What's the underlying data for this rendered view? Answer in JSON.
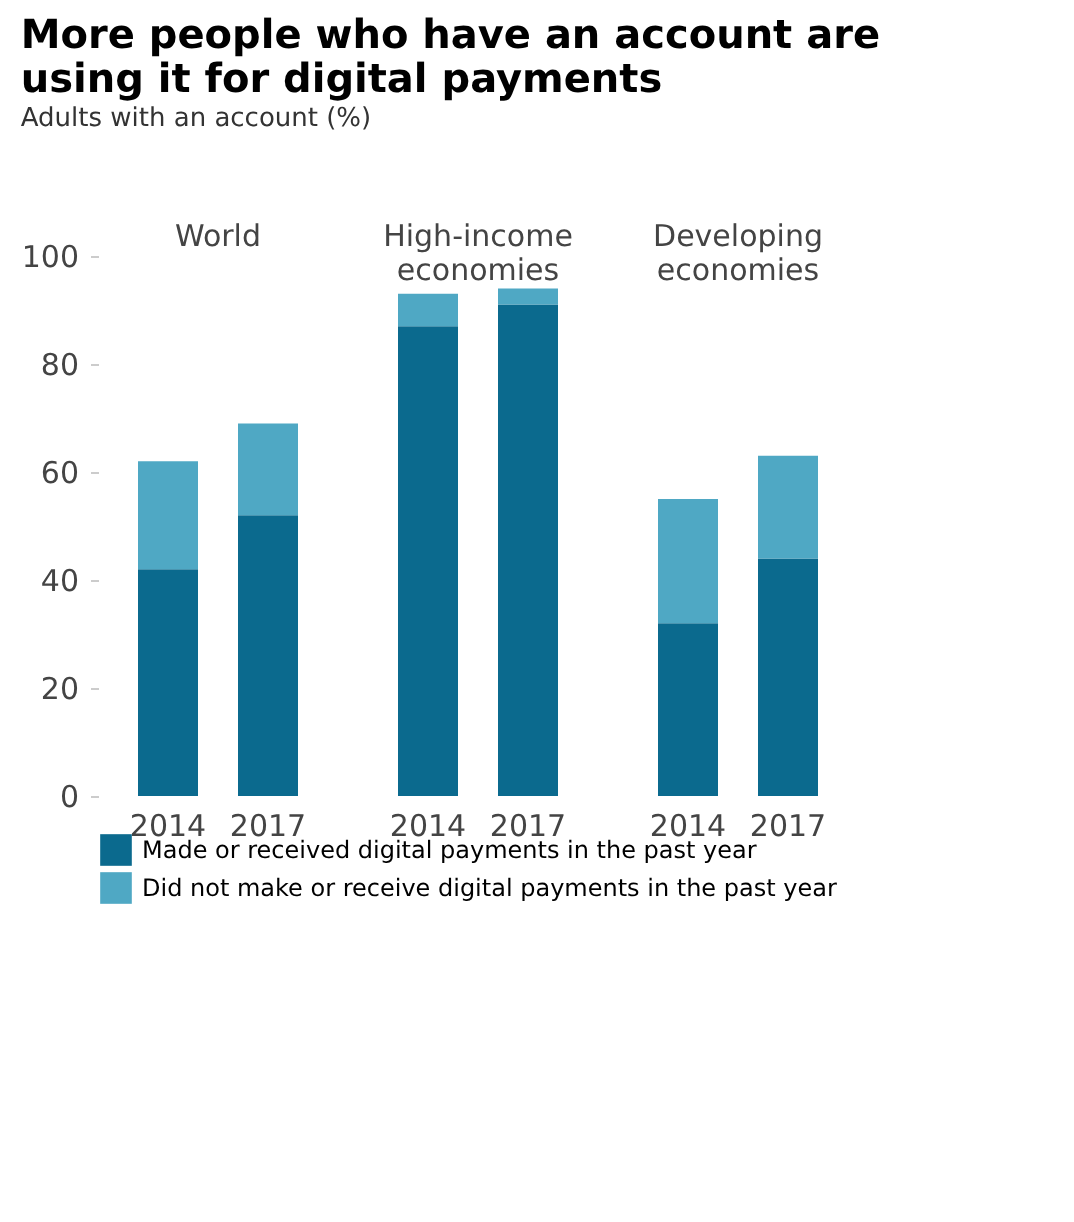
{
  "chart_data": {
    "type": "bar",
    "title": "More people who have an account are using it for digital payments",
    "subtitle": "Adults with an account (%)",
    "categories": [
      "2014",
      "2017",
      "2014",
      "2017",
      "2014",
      "2017"
    ],
    "annotations": [
      "World",
      "High-income economies",
      "Developing economies"
    ],
    "stacked": true,
    "series": [
      {
        "name": "Made or received digital payments in the past year",
        "color": "#0b6a8e",
        "values": [
          42,
          52,
          87,
          91,
          32,
          44
        ]
      },
      {
        "name": "Did not make or receive digital payments in the past year",
        "color": "#4fa8c4",
        "values": [
          20,
          17,
          6,
          3,
          23,
          19
        ]
      }
    ],
    "ylim": [
      0,
      100
    ],
    "yticks": [
      0,
      20,
      40,
      60,
      80,
      100
    ],
    "grid": false,
    "legend": "bottom"
  }
}
